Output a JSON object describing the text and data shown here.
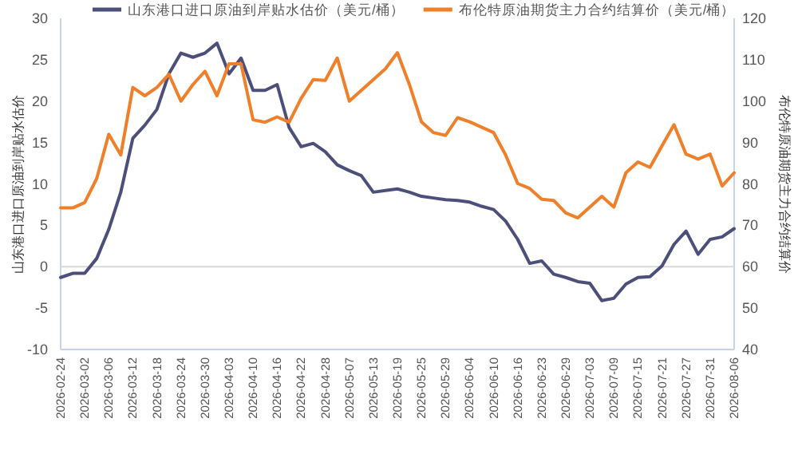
{
  "chart_data": {
    "type": "line",
    "ylabel": "山东港口进口原油到岸贴水估价",
    "y2label": "布伦特原油期货主力合约结算价",
    "categories": [
      "2026-02-24",
      null,
      "2026-03-02",
      null,
      "2026-03-06",
      null,
      "2026-03-12",
      null,
      "2026-03-18",
      null,
      "2026-03-24",
      null,
      "2026-03-30",
      null,
      "2026-04-03",
      null,
      "2026-04-10",
      null,
      "2026-04-16",
      null,
      "2026-04-22",
      null,
      "2026-04-28",
      null,
      "2026-05-07",
      null,
      "2026-05-13",
      null,
      "2026-05-19",
      null,
      "2026-05-25",
      null,
      "2026-05-29",
      null,
      "2026-06-04",
      null,
      "2026-06-10",
      null,
      "2026-06-16",
      null,
      "2026-06-23",
      null,
      "2026-06-29",
      null,
      "2026-07-03",
      null,
      "2026-07-09",
      null,
      "2026-07-15",
      null,
      "2026-07-21",
      null,
      "2026-07-27",
      null,
      "2026-07-31",
      null,
      "2026-08-06"
    ],
    "series": [
      {
        "name": "山东港口进口原油到岸贴水估价（美元/桶）",
        "color": "#4b4f7a",
        "values": [
          -1.3,
          -0.8,
          -0.8,
          1,
          4.5,
          9,
          15.5,
          17.1,
          19,
          23.3,
          25.8,
          25.3,
          25.8,
          27,
          23.3,
          25.2,
          21.3,
          21.3,
          22,
          16.8,
          14.5,
          14.9,
          13.9,
          12.3,
          11.6,
          11,
          9,
          9.2,
          9.4,
          9,
          8.5,
          8.3,
          8.1,
          8,
          7.8,
          7.3,
          6.9,
          5.5,
          3.3,
          0.4,
          0.7,
          -0.9,
          -1.3,
          -1.8,
          -2,
          -4.1,
          -3.8,
          -2.1,
          -1.3,
          -1.2,
          0.1,
          2.7,
          4.3,
          1.5,
          3.3,
          3.6,
          4.6
        ]
      },
      {
        "name": "布伦特原油期货主力合约结算价（美元/桶）",
        "color": "#f07f2a",
        "axis": "y2",
        "values": [
          74.2,
          74.2,
          75.5,
          81.3,
          92,
          87,
          103.3,
          101.3,
          103.3,
          106.5,
          100,
          104,
          107.2,
          101.3,
          109,
          109,
          95.5,
          94.9,
          96.2,
          94.9,
          100.7,
          105.2,
          105,
          110.4,
          100,
          102.6,
          105.2,
          107.8,
          111.7,
          104,
          95,
          92.4,
          91.7,
          96,
          95,
          93.7,
          92.4,
          87,
          80.1,
          78.9,
          76.3,
          76,
          73,
          71.8,
          74.4,
          77,
          74.4,
          82.7,
          85.3,
          84,
          89.2,
          94.3,
          87.2,
          86,
          87.2,
          79.5,
          82.7
        ]
      }
    ],
    "ylim": [
      -10,
      30
    ],
    "yticks": [
      -10,
      -5,
      0,
      5,
      10,
      15,
      20,
      25,
      30
    ],
    "y2lim": [
      40,
      120
    ],
    "y2ticks": [
      40,
      50,
      60,
      70,
      80,
      90,
      100,
      110,
      120
    ],
    "ref_lines": [
      {
        "axis": "y",
        "value": 0,
        "color": "#d8d8d8"
      }
    ],
    "legend": "top",
    "line_style": "solid",
    "marker": "none"
  }
}
